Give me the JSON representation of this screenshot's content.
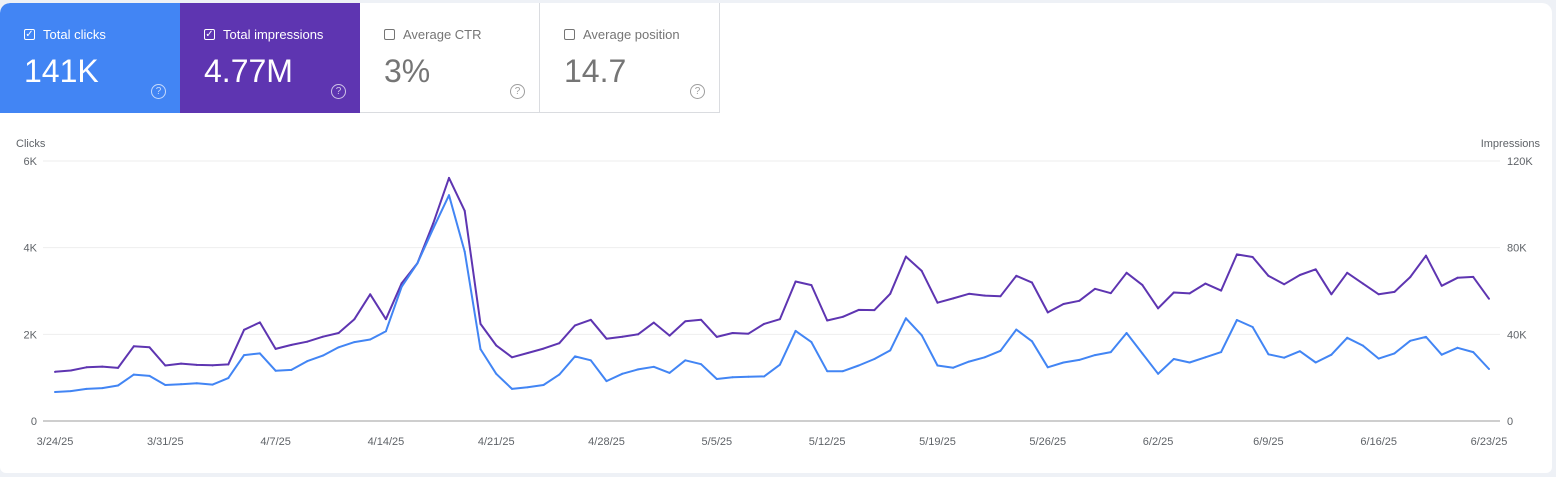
{
  "metrics": [
    {
      "label": "Total clicks",
      "value": "141K",
      "checked": true,
      "checkmark": "✓",
      "help": "?",
      "color": "#4285f4"
    },
    {
      "label": "Total impressions",
      "value": "4.77M",
      "checked": true,
      "checkmark": "✓",
      "help": "?",
      "color": "#5e35b1"
    },
    {
      "label": "Average CTR",
      "value": "3%",
      "checked": false,
      "checkmark": "",
      "help": "?",
      "color": "#ffffff"
    },
    {
      "label": "Average position",
      "value": "14.7",
      "checked": false,
      "checkmark": "",
      "help": "?",
      "color": "#ffffff"
    }
  ],
  "chart_data": {
    "type": "line",
    "grid": true,
    "left_axis_label": "Clicks",
    "right_axis_label": "Impressions",
    "left_ylim": [
      0,
      6000
    ],
    "right_ylim": [
      0,
      120000
    ],
    "left_ticks": [
      "0",
      "2K",
      "4K",
      "6K"
    ],
    "right_ticks": [
      "0",
      "40K",
      "80K",
      "120K"
    ],
    "x_ticks": [
      "3/24/25",
      "3/31/25",
      "4/7/25",
      "4/14/25",
      "4/21/25",
      "4/28/25",
      "5/5/25",
      "5/12/25",
      "5/19/25",
      "5/26/25",
      "6/2/25",
      "6/9/25",
      "6/16/25",
      "6/23/25"
    ],
    "x": [
      "3/24/25",
      "3/25/25",
      "3/26/25",
      "3/27/25",
      "3/28/25",
      "3/29/25",
      "3/30/25",
      "3/31/25",
      "4/1/25",
      "4/2/25",
      "4/3/25",
      "4/4/25",
      "4/5/25",
      "4/6/25",
      "4/7/25",
      "4/8/25",
      "4/9/25",
      "4/10/25",
      "4/11/25",
      "4/12/25",
      "4/13/25",
      "4/14/25",
      "4/15/25",
      "4/16/25",
      "4/17/25",
      "4/18/25",
      "4/19/25",
      "4/20/25",
      "4/21/25",
      "4/22/25",
      "4/23/25",
      "4/24/25",
      "4/25/25",
      "4/26/25",
      "4/27/25",
      "4/28/25",
      "4/29/25",
      "4/30/25",
      "5/1/25",
      "5/2/25",
      "5/3/25",
      "5/4/25",
      "5/5/25",
      "5/6/25",
      "5/7/25",
      "5/8/25",
      "5/9/25",
      "5/10/25",
      "5/11/25",
      "5/12/25",
      "5/13/25",
      "5/14/25",
      "5/15/25",
      "5/16/25",
      "5/17/25",
      "5/18/25",
      "5/19/25",
      "5/20/25",
      "5/21/25",
      "5/22/25",
      "5/23/25",
      "5/24/25",
      "5/25/25",
      "5/26/25",
      "5/27/25",
      "5/28/25",
      "5/29/25",
      "5/30/25",
      "5/31/25",
      "6/1/25",
      "6/2/25",
      "6/3/25",
      "6/4/25",
      "6/5/25",
      "6/6/25",
      "6/7/25",
      "6/8/25",
      "6/9/25",
      "6/10/25",
      "6/11/25",
      "6/12/25",
      "6/13/25",
      "6/14/25",
      "6/15/25",
      "6/16/25",
      "6/17/25",
      "6/18/25",
      "6/19/25",
      "6/20/25",
      "6/21/25",
      "6/22/25",
      "6/23/25"
    ],
    "series": [
      {
        "name": "Clicks",
        "axis": "left",
        "color": "#4285f4",
        "values": [
          670,
          690,
          740,
          760,
          820,
          1070,
          1040,
          830,
          850,
          870,
          840,
          990,
          1520,
          1560,
          1160,
          1180,
          1380,
          1510,
          1700,
          1820,
          1880,
          2070,
          3100,
          3640,
          4440,
          5210,
          3910,
          1660,
          1090,
          740,
          780,
          830,
          1070,
          1490,
          1400,
          920,
          1090,
          1190,
          1250,
          1110,
          1400,
          1310,
          970,
          1010,
          1020,
          1030,
          1300,
          2080,
          1820,
          1150,
          1150,
          1280,
          1430,
          1630,
          2370,
          1980,
          1280,
          1230,
          1370,
          1470,
          1620,
          2110,
          1840,
          1240,
          1350,
          1410,
          1520,
          1590,
          2030,
          1560,
          1090,
          1430,
          1350,
          1470,
          1590,
          2330,
          2170,
          1540,
          1460,
          1610,
          1350,
          1530,
          1920,
          1740,
          1440,
          1560,
          1850,
          1940,
          1530,
          1690,
          1590,
          1200
        ]
      },
      {
        "name": "Impressions",
        "axis": "right",
        "color": "#5e35b1",
        "values": [
          22700,
          23300,
          24800,
          25100,
          24500,
          34500,
          34000,
          25600,
          26500,
          25900,
          25700,
          26100,
          42100,
          45500,
          33300,
          35100,
          36600,
          38900,
          40600,
          47000,
          58500,
          47000,
          63600,
          72800,
          91200,
          112200,
          97000,
          44800,
          34900,
          29400,
          31400,
          33400,
          35900,
          44100,
          46700,
          38000,
          38900,
          40000,
          45400,
          39400,
          46000,
          46700,
          38800,
          40600,
          40300,
          44800,
          47000,
          64400,
          62700,
          46400,
          48100,
          51300,
          51200,
          58700,
          75900,
          69300,
          54600,
          56600,
          58700,
          57900,
          57600,
          67000,
          63900,
          50100,
          54000,
          55500,
          61000,
          59000,
          68400,
          62800,
          52000,
          59300,
          58900,
          63400,
          60200,
          76900,
          75700,
          67000,
          63100,
          67400,
          70000,
          58500,
          68400,
          63400,
          58500,
          59600,
          66400,
          76300,
          62400,
          66100,
          66500,
          56400
        ]
      }
    ]
  }
}
